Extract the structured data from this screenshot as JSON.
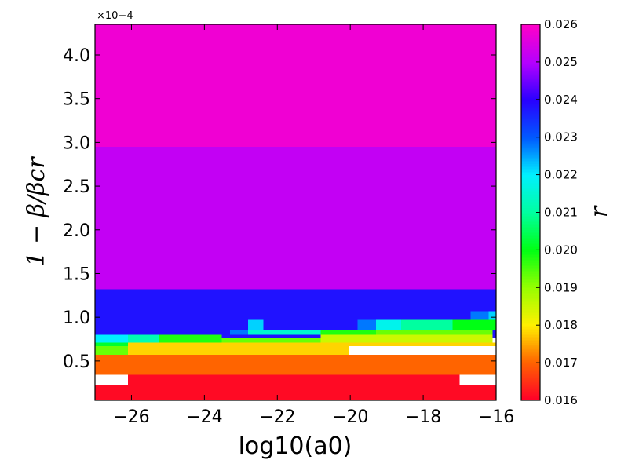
{
  "chart_data": {
    "type": "heatmap",
    "xlabel": "log10(a0)",
    "ylabel": "1 − β/βcr",
    "colorbar_label": "r",
    "y_scale_note": "×10−4",
    "xlim": [
      -27,
      -16
    ],
    "ylim": [
      0.05,
      4.35
    ],
    "y_multiplier": 0.0001,
    "x_ticks": [
      -26,
      -24,
      -22,
      -20,
      -18,
      -16
    ],
    "x_tick_labels": [
      "−26",
      "−24",
      "−22",
      "−20",
      "−18",
      "−16"
    ],
    "y_ticks": [
      0.5,
      1.0,
      1.5,
      2.0,
      2.5,
      3.0,
      3.5,
      4.0
    ],
    "y_tick_labels": [
      "0.5",
      "1.0",
      "1.5",
      "2.0",
      "2.5",
      "3.0",
      "3.5",
      "4.0"
    ],
    "colorbar": {
      "range": [
        0.016,
        0.026
      ],
      "colormap": "gist_rainbow (reversed)",
      "ticks": [
        0.016,
        0.017,
        0.018,
        0.019,
        0.02,
        0.021,
        0.022,
        0.023,
        0.024,
        0.025,
        0.026
      ],
      "tick_labels": [
        "0.016",
        "0.017",
        "0.018",
        "0.019",
        "0.020",
        "0.021",
        "0.022",
        "0.023",
        "0.024",
        "0.025",
        "0.026"
      ]
    },
    "cells": [
      {
        "x0": -27,
        "x1": -16,
        "y0": 2.95,
        "y1": 4.35,
        "r": 0.0258
      },
      {
        "x0": -27,
        "x1": -16,
        "y0": 1.32,
        "y1": 2.95,
        "r": 0.0252
      },
      {
        "x0": -27,
        "x1": -16,
        "y0": 0.76,
        "y1": 1.32,
        "r": 0.0238
      },
      {
        "x0": -27,
        "x1": -16,
        "y0": 0.05,
        "y1": 0.23,
        "r": 0.0161
      },
      {
        "x0": -26.1,
        "x1": -17,
        "y0": 0.23,
        "y1": 0.34,
        "r": 0.0161
      },
      {
        "x0": -27,
        "x1": -16,
        "y0": 0.34,
        "y1": 0.57,
        "r": 0.017
      },
      {
        "x0": -26.1,
        "x1": -20.03,
        "y0": 0.57,
        "y1": 0.67,
        "r": 0.0178
      },
      {
        "x0": -26.1,
        "x1": -16,
        "y0": 0.67,
        "y1": 0.71,
        "r": 0.0178
      },
      {
        "x0": -27,
        "x1": -26.1,
        "y0": 0.57,
        "y1": 0.67,
        "r": 0.0193
      },
      {
        "x0": -23.52,
        "x1": -20.81,
        "y0": 0.71,
        "y1": 0.76,
        "r": 0.0193
      },
      {
        "x0": -20.81,
        "x1": -20.03,
        "y0": 0.71,
        "y1": 0.8,
        "r": 0.0185
      },
      {
        "x0": -20.03,
        "x1": -16.1,
        "y0": 0.71,
        "y1": 0.8,
        "r": 0.0185
      },
      {
        "x0": -19.29,
        "x1": -16.1,
        "y0": 0.8,
        "y1": 0.86,
        "r": 0.0193
      },
      {
        "x0": -25.24,
        "x1": -23.52,
        "y0": 0.71,
        "y1": 0.8,
        "r": 0.0198
      },
      {
        "x0": -20.81,
        "x1": -19.29,
        "y0": 0.8,
        "y1": 0.86,
        "r": 0.0198
      },
      {
        "x0": -17.2,
        "x1": -16,
        "y0": 0.86,
        "y1": 0.97,
        "r": 0.02
      },
      {
        "x0": -27,
        "x1": -26.1,
        "y0": 0.67,
        "y1": 0.71,
        "r": 0.0202
      },
      {
        "x0": -18.6,
        "x1": -17.2,
        "y0": 0.86,
        "y1": 0.97,
        "r": 0.021
      },
      {
        "x0": -26.1,
        "x1": -25.24,
        "y0": 0.71,
        "y1": 0.8,
        "r": 0.0212
      },
      {
        "x0": -22.8,
        "x1": -20.81,
        "y0": 0.8,
        "y1": 0.86,
        "r": 0.0215
      },
      {
        "x0": -19.29,
        "x1": -18.6,
        "y0": 0.86,
        "y1": 0.97,
        "r": 0.0218
      },
      {
        "x0": -27,
        "x1": -26.1,
        "y0": 0.71,
        "y1": 0.8,
        "r": 0.022
      },
      {
        "x0": -22.8,
        "x1": -22.38,
        "y0": 0.86,
        "y1": 0.97,
        "r": 0.0222
      },
      {
        "x0": -16.2,
        "x1": -16,
        "y0": 0.97,
        "y1": 1.07,
        "r": 0.0222
      },
      {
        "x0": -23.3,
        "x1": -22.8,
        "y0": 0.8,
        "y1": 0.86,
        "r": 0.0228
      },
      {
        "x0": -19.8,
        "x1": -19.29,
        "y0": 0.86,
        "y1": 0.97,
        "r": 0.0228
      },
      {
        "x0": -16.7,
        "x1": -16.2,
        "y0": 0.97,
        "y1": 1.07,
        "r": 0.0228
      }
    ]
  }
}
